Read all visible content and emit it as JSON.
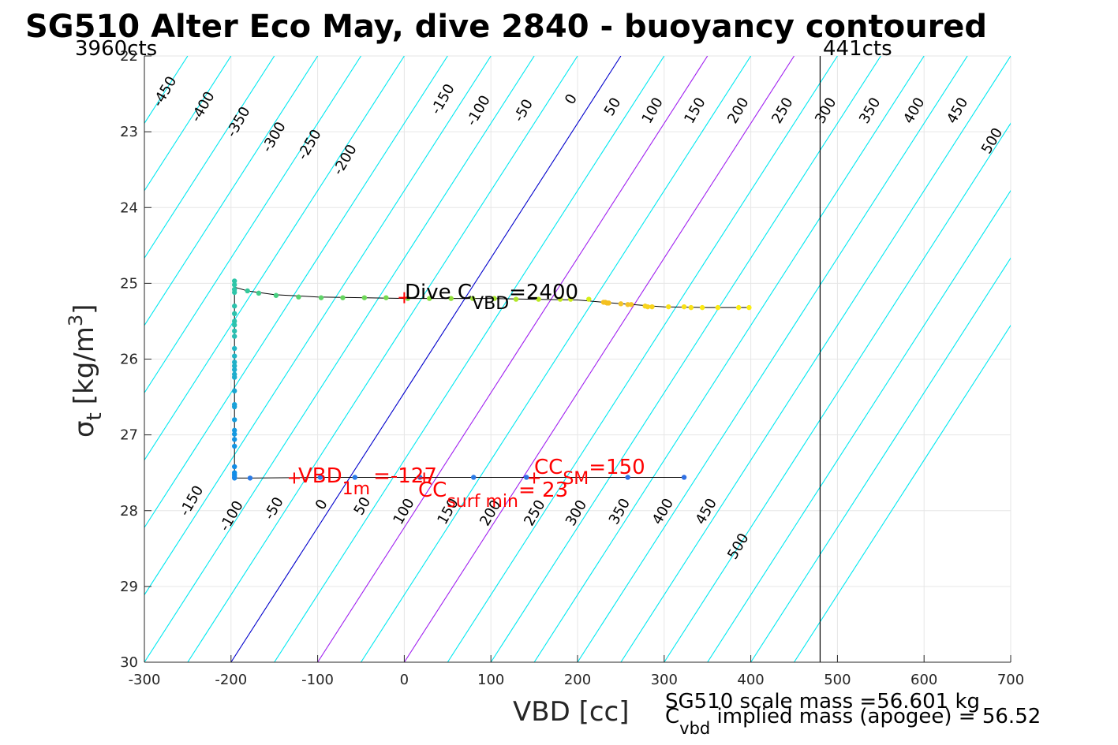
{
  "chart_data": {
    "type": "scatter",
    "title": "SG510 Alter Eco May, dive 2840 - buoyancy contoured",
    "xlabel": "VBD [cc]",
    "ylabel": "σt [kg/m3]",
    "ylabel_parts": {
      "sigma": "σ",
      "sub": "t",
      "unit": "[kg/m",
      "sup": "3",
      "close": "]"
    },
    "xlim": [
      -300,
      700
    ],
    "ylim": [
      22,
      30
    ],
    "y_reversed": true,
    "grid": true,
    "xticks": [
      -300,
      -200,
      -100,
      0,
      100,
      200,
      300,
      400,
      500,
      600,
      700
    ],
    "yticks": [
      22,
      23,
      24,
      25,
      26,
      27,
      28,
      29,
      30
    ],
    "x_tick_labels": [
      "-300",
      "-200",
      "-100",
      "0",
      "100",
      "200",
      "300",
      "400",
      "500",
      "600",
      "700"
    ],
    "y_tick_labels": [
      "22",
      "23",
      "24",
      "25",
      "26",
      "27",
      "28",
      "29",
      "30"
    ],
    "contours": {
      "slope_cc_per_sigma": 56.25,
      "levels": [
        -450,
        -400,
        -350,
        -300,
        -250,
        -200,
        -150,
        -100,
        -50,
        0,
        50,
        100,
        150,
        200,
        250,
        300,
        350,
        400,
        450,
        500
      ],
      "labels": [
        "-450",
        "-400",
        "-350",
        "-300",
        "-250",
        "-200",
        "-150",
        "-100",
        "-50",
        "0",
        "50",
        "100",
        "150",
        "200",
        "250",
        "300",
        "350",
        "400",
        "450",
        "500"
      ],
      "colors": {
        "default": "#00e8f0",
        "zero": "#0000cc",
        "highlight": "#a020f0"
      },
      "highlight_levels": [
        100,
        200
      ],
      "top_labels": [
        {
          "level": -450,
          "text": "-450",
          "x": -272,
          "y": 22.5
        },
        {
          "level": -400,
          "text": "-400",
          "x": -228,
          "y": 22.7
        },
        {
          "level": -350,
          "text": "-350",
          "x": -187,
          "y": 22.9
        },
        {
          "level": -300,
          "text": "-300",
          "x": -146,
          "y": 23.1
        },
        {
          "level": -250,
          "text": "-250",
          "x": -105,
          "y": 23.2
        },
        {
          "level": -200,
          "text": "-200",
          "x": -64,
          "y": 23.4
        },
        {
          "level": -150,
          "text": "-150",
          "x": 49,
          "y": 22.6
        },
        {
          "level": -100,
          "text": "-100",
          "x": 90,
          "y": 22.75
        },
        {
          "level": -50,
          "text": "-50",
          "x": 142,
          "y": 22.75
        },
        {
          "level": 0,
          "text": "0",
          "x": 197,
          "y": 22.6
        },
        {
          "level": 50,
          "text": "50",
          "x": 245,
          "y": 22.7
        },
        {
          "level": 100,
          "text": "100",
          "x": 291,
          "y": 22.75
        },
        {
          "level": 150,
          "text": "150",
          "x": 340,
          "y": 22.75
        },
        {
          "level": 200,
          "text": "200",
          "x": 390,
          "y": 22.75
        },
        {
          "level": 250,
          "text": "250",
          "x": 441,
          "y": 22.75
        },
        {
          "level": 300,
          "text": "300",
          "x": 491,
          "y": 22.75
        },
        {
          "level": 350,
          "text": "350",
          "x": 542,
          "y": 22.75
        },
        {
          "level": 400,
          "text": "400",
          "x": 593,
          "y": 22.75
        },
        {
          "level": 450,
          "text": "450",
          "x": 643,
          "y": 22.75
        },
        {
          "level": 500,
          "text": "500",
          "x": 683,
          "y": 23.15
        }
      ],
      "bottom_labels": [
        {
          "level": -150,
          "text": "-150",
          "x": -241,
          "y": 27.9
        },
        {
          "level": -100,
          "text": "-100",
          "x": -195,
          "y": 28.1
        },
        {
          "level": -50,
          "text": "-50",
          "x": -146,
          "y": 28.0
        },
        {
          "level": 0,
          "text": "0",
          "x": -91,
          "y": 27.95
        },
        {
          "level": 50,
          "text": "50",
          "x": -44,
          "y": 27.97
        },
        {
          "level": 100,
          "text": "100",
          "x": 4,
          "y": 28.04
        },
        {
          "level": 150,
          "text": "150",
          "x": 55,
          "y": 28.04
        },
        {
          "level": 200,
          "text": "200",
          "x": 104,
          "y": 28.06
        },
        {
          "level": 250,
          "text": "250",
          "x": 155,
          "y": 28.06
        },
        {
          "level": 300,
          "text": "300",
          "x": 203,
          "y": 28.06
        },
        {
          "level": 350,
          "text": "350",
          "x": 253,
          "y": 28.04
        },
        {
          "level": 400,
          "text": "400",
          "x": 303,
          "y": 28.04
        },
        {
          "level": 450,
          "text": "450",
          "x": 353,
          "y": 28.04
        },
        {
          "level": 500,
          "text": "500",
          "x": 390,
          "y": 28.5
        }
      ]
    },
    "vlines": [
      {
        "x": 480,
        "label": "441cts",
        "color": "#000000"
      }
    ],
    "left_label": "3960cts",
    "series": [
      {
        "x": [
          -196,
          -196,
          -196,
          -196,
          -196,
          -196,
          -196,
          -196,
          -196,
          -196,
          -196,
          -196,
          -196,
          -196,
          -196,
          -196,
          -196,
          -196,
          -196,
          -196,
          -196,
          -196,
          -196,
          -196,
          -196,
          -196,
          -196
        ],
        "y": [
          25.08,
          25.12,
          25.3,
          25.4,
          25.5,
          25.55,
          25.63,
          25.7,
          25.86,
          25.96,
          26.04,
          26.09,
          26.14,
          26.2,
          26.24,
          26.42,
          26.6,
          26.63,
          26.8,
          26.94,
          26.99,
          27.06,
          27.15,
          27.42,
          27.5,
          27.53,
          27.56
        ],
        "colors": [
          "#2ec5a8",
          "#2ec5a8",
          "#2cc2ac",
          "#2cc2ac",
          "#2cc2ac",
          "#2cc2ac",
          "#2ac0b0",
          "#2abdb4",
          "#22b5c4",
          "#22b5c4",
          "#20b0c8",
          "#20b0c8",
          "#1eaccc",
          "#1eaccc",
          "#1eaccc",
          "#1aa6d2",
          "#18a0d8",
          "#18a0d8",
          "#169cdc",
          "#1498e0",
          "#1498e0",
          "#1294e2",
          "#1294e2",
          "#108ce6",
          "#108ce6",
          "#108ce6",
          "#108ce6"
        ]
      },
      {
        "x": [
          -196,
          -196,
          -181,
          -168,
          -148,
          -122,
          -96,
          -71,
          -46,
          -21,
          4,
          29,
          54,
          79,
          104,
          129,
          155,
          180,
          192,
          213,
          230,
          232,
          234,
          236,
          250,
          258,
          262,
          278,
          281,
          286,
          305,
          323,
          331,
          344,
          362,
          386,
          398
        ],
        "y": [
          24.97,
          25.02,
          25.1,
          25.13,
          25.16,
          25.18,
          25.19,
          25.19,
          25.19,
          25.19,
          25.2,
          25.2,
          25.2,
          25.2,
          25.2,
          25.21,
          25.21,
          25.21,
          25.21,
          25.21,
          25.25,
          25.25,
          25.26,
          25.26,
          25.27,
          25.28,
          25.28,
          25.3,
          25.31,
          25.31,
          25.31,
          25.31,
          25.32,
          25.32,
          25.32,
          25.32,
          25.32
        ],
        "colors": [
          "#2ec5a8",
          "#2ec5a8",
          "#34c99c",
          "#40cc8c",
          "#48cf80",
          "#56d270",
          "#5ed468",
          "#66d660",
          "#6ed858",
          "#76da50",
          "#80dc48",
          "#88de40",
          "#92e03a",
          "#9ce234",
          "#a6e42e",
          "#b0e628",
          "#bae822",
          "#c4ea1e",
          "#ccec1a",
          "#d6ee16",
          "#f4c020",
          "#f4c020",
          "#f4c020",
          "#f4c020",
          "#f4c428",
          "#f4c428",
          "#f4c428",
          "#f8d41e",
          "#f8d41e",
          "#f8d41e",
          "#fae218",
          "#fae218",
          "#fae218",
          "#fcea14",
          "#fcea14",
          "#fcee10",
          "#fcee10"
        ]
      },
      {
        "x": [
          -196,
          -178,
          -97,
          -57,
          18,
          80,
          141,
          258,
          323
        ],
        "y": [
          27.57,
          27.57,
          27.56,
          27.56,
          27.56,
          27.56,
          27.56,
          27.56,
          27.56
        ],
        "colors": [
          "#1a88e8",
          "#2a7ae6",
          "#2a7ae6",
          "#2a7ae6",
          "#2a7ae6",
          "#2a7ae6",
          "#3070e4",
          "#3070e4",
          "#3070e4"
        ]
      }
    ],
    "profile_line": {
      "x": [
        -196,
        -181,
        -150,
        -100,
        -50,
        0,
        50,
        100,
        150,
        200,
        250,
        300,
        350,
        398,
        398,
        -196,
        -196,
        -196,
        -196,
        -178,
        -97,
        -57,
        18,
        80,
        141,
        258,
        323
      ],
      "y": [
        25.05,
        25.1,
        25.15,
        25.18,
        25.19,
        25.2,
        25.2,
        25.2,
        25.21,
        25.22,
        25.27,
        25.31,
        25.32,
        25.32,
        null,
        25.05,
        27.57,
        null,
        27.57,
        27.57,
        27.56,
        27.56,
        27.56,
        27.56,
        27.56,
        27.56,
        27.56
      ]
    },
    "markers": [
      {
        "x": 0,
        "y": 25.19,
        "label": "dive-cvbd-marker"
      },
      {
        "x": -127,
        "y": 27.57,
        "label": "vbd-1m-marker"
      },
      {
        "x": 23,
        "y": 27.57,
        "label": "cc-surf-min-marker"
      },
      {
        "x": 150,
        "y": 27.57,
        "label": "cc-sm-marker"
      }
    ],
    "annotations": {
      "dive_cvbd": {
        "pre": "Dive C",
        "sub": "VBD",
        "post": "=2400"
      },
      "vbd_1m": {
        "pre": "VBD",
        "sub": "1m",
        "post": "=-127"
      },
      "cc_surf_min": {
        "pre": "CC",
        "sub": "surf min",
        "post": "= 23"
      },
      "cc_sm": {
        "pre": "CC",
        "sub": "SM",
        "post": "=150"
      }
    },
    "footer": {
      "line1": "SG510 scale mass =56.601 kg",
      "line2_pre": "C",
      "line2_sub": "vbd",
      "line2_post": " implied mass (apogee) = 56.52"
    },
    "colors": {
      "axis": "#262626",
      "grid": "#e6e6e6",
      "profile": "#000000",
      "marker": "#ff0000",
      "annotation": "#ff0000"
    }
  }
}
